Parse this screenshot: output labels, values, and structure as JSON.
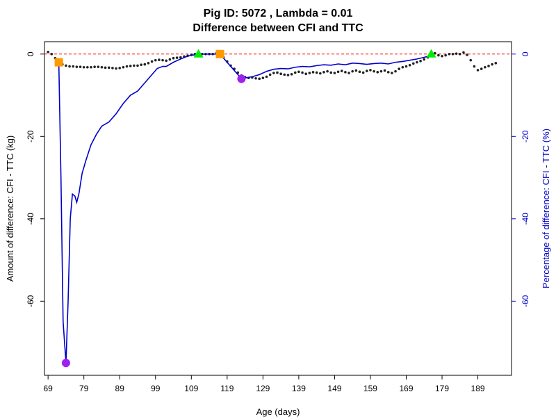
{
  "chart_data": {
    "type": "line",
    "title": "Pig ID: 5072 , Lambda = 0.01",
    "subtitle": "Difference between CFI and TTC",
    "xlabel": "Age (days)",
    "ylabel": "Amount of difference: CFI - TTC (kg)",
    "y2label": "Percentage of difference: CFI - TTC (%)",
    "y2color": "#0000cc",
    "xlim": [
      68,
      198.4
    ],
    "ylim": [
      -78,
      3
    ],
    "y2lim": [
      -78,
      3
    ],
    "xticks": [
      69,
      79,
      89,
      99,
      109,
      119,
      129,
      139,
      149,
      159,
      169,
      179,
      189
    ],
    "yticks": [
      0,
      -20,
      -40,
      -60
    ],
    "y2ticks": [
      0,
      -20,
      -40,
      -60
    ],
    "hlines": [
      {
        "value": 0,
        "color": "#ff0000"
      }
    ],
    "series": [
      {
        "kind": "points",
        "color": "#222222",
        "x": [
          69,
          70,
          71,
          72,
          73,
          74,
          75,
          76,
          77,
          78,
          79,
          80,
          81,
          82,
          83,
          84,
          85,
          86,
          87,
          88,
          89,
          90,
          91,
          92,
          93,
          94,
          95,
          96,
          97,
          98,
          99,
          100,
          101,
          102,
          103,
          104,
          105,
          106,
          107,
          108,
          109,
          110,
          111,
          112,
          113,
          114,
          115,
          116,
          117,
          118,
          119,
          120,
          121,
          122,
          123,
          124,
          125,
          126,
          127,
          128,
          129,
          130,
          131,
          132,
          133,
          134,
          135,
          136,
          137,
          138,
          139,
          140,
          141,
          142,
          143,
          144,
          145,
          146,
          147,
          148,
          149,
          150,
          151,
          152,
          153,
          154,
          155,
          156,
          157,
          158,
          159,
          160,
          161,
          162,
          163,
          164,
          165,
          166,
          167,
          168,
          169,
          170,
          171,
          172,
          173,
          174,
          175,
          176,
          177,
          178,
          179,
          180,
          181,
          182,
          183,
          184,
          185,
          186,
          187,
          188,
          189,
          190,
          191,
          192,
          193,
          194
        ],
        "values": [
          0.5,
          0,
          -1,
          -2,
          -2.5,
          -2.8,
          -3,
          -3,
          -3.1,
          -3.1,
          -3.2,
          -3.2,
          -3.2,
          -3.1,
          -3.1,
          -3.2,
          -3.3,
          -3.3,
          -3.4,
          -3.5,
          -3.4,
          -3.2,
          -3,
          -2.9,
          -2.8,
          -2.8,
          -2.6,
          -2.5,
          -2.2,
          -1.8,
          -1.5,
          -1.4,
          -1.5,
          -1.6,
          -1.3,
          -1,
          -0.9,
          -0.8,
          -0.6,
          -0.4,
          -0.2,
          0,
          0,
          0,
          0,
          0,
          0,
          0.2,
          0,
          -0.8,
          -1.8,
          -2.8,
          -3.6,
          -4.5,
          -5.2,
          -5.6,
          -5.8,
          -5.7,
          -5.9,
          -6,
          -5.8,
          -5.5,
          -5,
          -4.6,
          -4.5,
          -4.8,
          -5,
          -5.1,
          -4.9,
          -4.5,
          -4.3,
          -4.5,
          -4.8,
          -4.6,
          -4.4,
          -4.5,
          -4.7,
          -4.4,
          -4.2,
          -4.5,
          -4.6,
          -4.3,
          -4.1,
          -4.4,
          -4.6,
          -4.2,
          -4,
          -4.3,
          -4.5,
          -4.1,
          -3.9,
          -4.2,
          -4.4,
          -4.2,
          -4,
          -4.4,
          -4.6,
          -4.2,
          -3.6,
          -3.2,
          -3,
          -2.7,
          -2.3,
          -2,
          -1.7,
          -1.3,
          -0.8,
          -0.3,
          0.2,
          -0.3,
          -0.5,
          -0.3,
          0,
          0,
          0.1,
          0,
          0.4,
          -0.2,
          -1.5,
          -3,
          -3.9,
          -3.6,
          -3.2,
          -2.9,
          -2.5,
          -2.2
        ]
      },
      {
        "kind": "line",
        "color": "#0000cc",
        "axis": "y2",
        "x": [
          72,
          72.6,
          73.2,
          74,
          74.6,
          75.2,
          75.8,
          76.5,
          77,
          77.6,
          78.5,
          79.5,
          81,
          82.5,
          84,
          86,
          88,
          90,
          92,
          94,
          96,
          98,
          99.5,
          101,
          102,
          104,
          106,
          108,
          111,
          114,
          117,
          118.5,
          120,
          122,
          123,
          124,
          126,
          128,
          130,
          132,
          134,
          136,
          138,
          140,
          142,
          144,
          146,
          148,
          150,
          152,
          154,
          156,
          158,
          160,
          162,
          164,
          166,
          168,
          170,
          172,
          174,
          176
        ],
        "values": [
          -2,
          -30,
          -65,
          -75,
          -60,
          -40,
          -34,
          -34.5,
          -36,
          -34,
          -29,
          -26,
          -22,
          -19.5,
          -17.5,
          -16.5,
          -14.5,
          -12,
          -10,
          -9,
          -7,
          -5,
          -3.5,
          -3,
          -3,
          -2,
          -1.2,
          -0.5,
          0,
          0,
          0,
          -1.5,
          -3,
          -5,
          -6,
          -5.8,
          -5.5,
          -5,
          -4.2,
          -3.7,
          -3.5,
          -3.6,
          -3.2,
          -3,
          -3.1,
          -2.8,
          -2.6,
          -2.7,
          -2.4,
          -2.6,
          -2.2,
          -2.3,
          -2.5,
          -2.3,
          -2.2,
          -2.4,
          -2,
          -1.8,
          -1.5,
          -1.2,
          -0.8,
          -0.3
        ]
      },
      {
        "kind": "marker",
        "marker": "square",
        "color": "#ff9900",
        "x": [
          72,
          117
        ],
        "values": [
          -2,
          0
        ]
      },
      {
        "kind": "marker",
        "marker": "triangle",
        "color": "#00ee00",
        "x": [
          111,
          176
        ],
        "values": [
          0,
          0
        ]
      },
      {
        "kind": "marker",
        "marker": "circle",
        "color": "#a020f0",
        "x": [
          74,
          123
        ],
        "values": [
          -75,
          -6
        ]
      }
    ]
  }
}
